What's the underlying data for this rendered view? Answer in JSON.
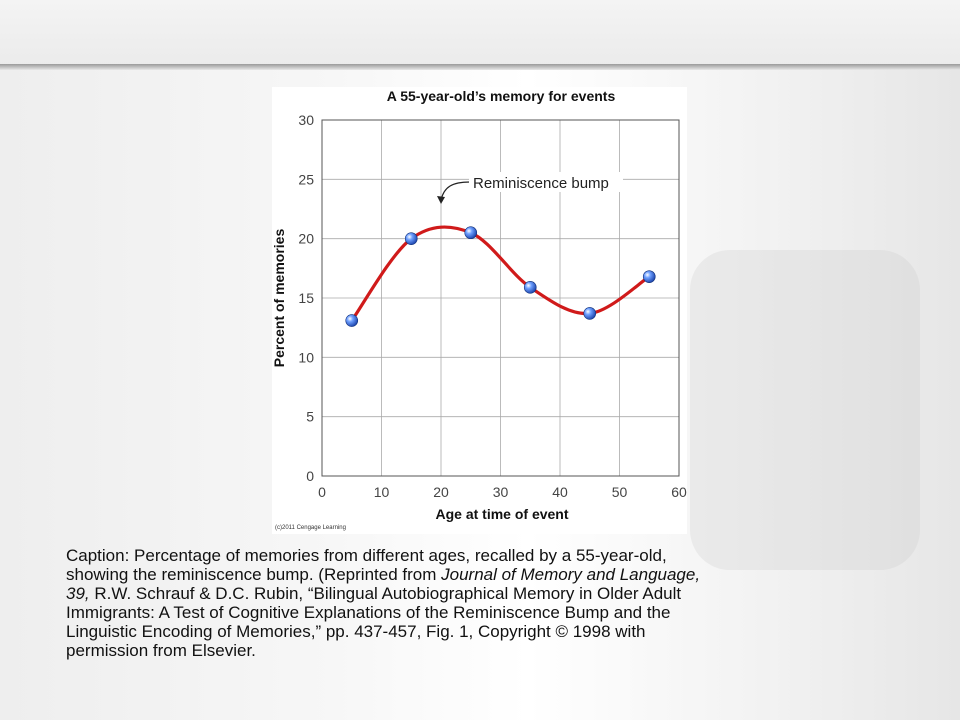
{
  "slide": {
    "caption_lines": [
      [
        {
          "t": "Caption: Percentage of memories from different ages, recalled by a 55-year-old,"
        }
      ],
      [
        {
          "t": "showing the reminiscence bump. (Reprinted from "
        },
        {
          "t": "Journal of Memory and Language,",
          "i": true
        }
      ],
      [
        {
          "t": "39,",
          "i": true
        },
        {
          "t": " R.W. Schrauf & D.C. Rubin, “Bilingual Autobiographical Memory in Older Adult"
        }
      ],
      [
        {
          "t": "Immigrants: A Test of Cognitive Explanations of the Reminiscence Bump and the"
        }
      ],
      [
        {
          "t": "Linguistic Encoding of Memories,” pp. 437-457, Fig. 1, Copyright © 1998 with"
        }
      ],
      [
        {
          "t": "permission from Elsevier."
        }
      ]
    ]
  },
  "chart_data": {
    "type": "line",
    "title": "A 55-year-old’s memory for events",
    "xlabel": "Age at time of event",
    "ylabel": "Percent of memories",
    "xlim": [
      0,
      60
    ],
    "ylim": [
      0,
      30
    ],
    "xticks": [
      0,
      10,
      20,
      30,
      40,
      50,
      60
    ],
    "yticks": [
      0,
      5,
      10,
      15,
      20,
      25,
      30
    ],
    "grid": true,
    "series": [
      {
        "x": [
          5,
          15,
          25,
          35,
          45,
          55
        ],
        "values": [
          13.1,
          20.0,
          20.5,
          15.9,
          13.7,
          16.8
        ]
      }
    ],
    "annotation": {
      "text": "Reminiscence bump",
      "points_to": [
        20,
        21.2
      ]
    },
    "credit": "(c)2011 Cengage Learning",
    "colors": {
      "line": "#d01a1a",
      "marker": "#1f5fd6",
      "grid": "#aaaaaa",
      "axis": "#444444"
    }
  }
}
